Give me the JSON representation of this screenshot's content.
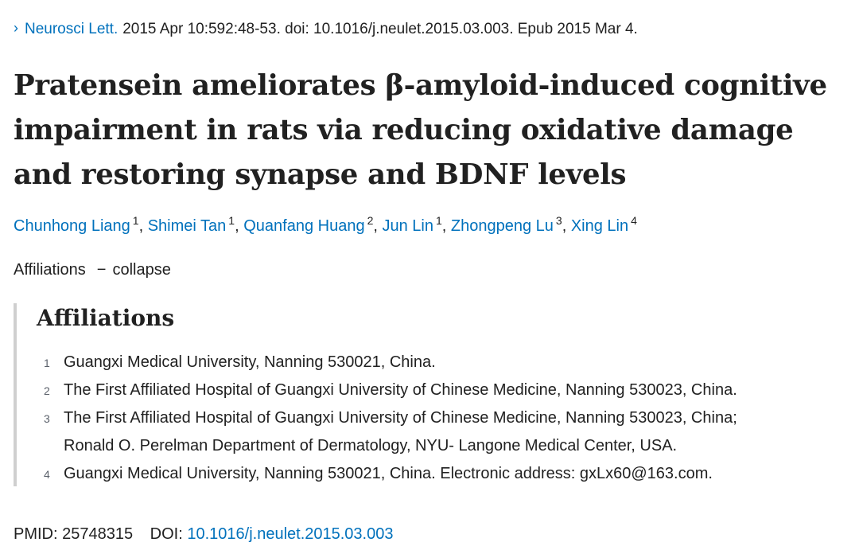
{
  "citation": {
    "chevron": "›",
    "journal": "Neurosci Lett.",
    "details": "2015 Apr 10:592:48-53. doi: 10.1016/j.neulet.2015.03.003. Epub 2015 Mar 4."
  },
  "title": {
    "line1": "Pratensein ameliorates β-amyloid-induced cognitive",
    "line2": "impairment in rats via reducing oxidative damage",
    "line3": "and restoring synapse and BDNF levels"
  },
  "authors": [
    {
      "name": "Chunhong Liang",
      "aff": "1"
    },
    {
      "name": "Shimei Tan",
      "aff": "1"
    },
    {
      "name": "Quanfang Huang",
      "aff": "2"
    },
    {
      "name": "Jun Lin",
      "aff": "1"
    },
    {
      "name": "Zhongpeng Lu",
      "aff": "3"
    },
    {
      "name": "Xing Lin",
      "aff": "4"
    }
  ],
  "author_separator": ",",
  "affiliations_toggle": {
    "label": "Affiliations",
    "symbol": "−",
    "action": "collapse"
  },
  "affiliations": {
    "heading": "Affiliations",
    "items": [
      {
        "num": "1",
        "lines": [
          "Guangxi Medical University, Nanning 530021, China."
        ]
      },
      {
        "num": "2",
        "lines": [
          "The First Affiliated Hospital of Guangxi University of Chinese Medicine, Nanning 530023, China."
        ]
      },
      {
        "num": "3",
        "lines": [
          "The First Affiliated Hospital of Guangxi University of Chinese Medicine, Nanning 530023, China;",
          "Ronald O. Perelman Department of Dermatology, NYU- Langone Medical Center, USA."
        ]
      },
      {
        "num": "4",
        "lines": [
          "Guangxi Medical University, Nanning 530021, China. Electronic address: gxLx60@163.com."
        ]
      }
    ]
  },
  "identifiers": {
    "pmid_label": "PMID:",
    "pmid": "25748315",
    "doi_label": "DOI:",
    "doi": "10.1016/j.neulet.2015.03.003"
  },
  "colors": {
    "link": "#0071bc",
    "text": "#212121",
    "border": "#cfcfcf"
  }
}
